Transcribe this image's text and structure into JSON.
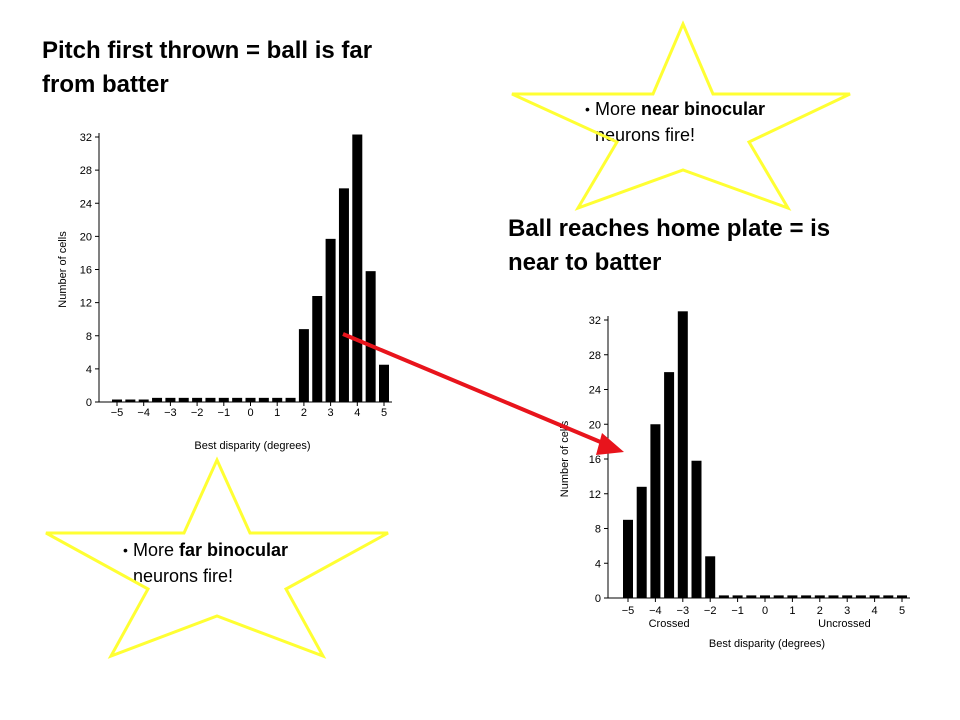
{
  "headings": {
    "top": [
      "Pitch first thrown = ball is far",
      "from batter"
    ],
    "bottom": [
      "Ball reaches home plate = is",
      "near to batter"
    ]
  },
  "callouts": {
    "top": {
      "prefix": "More ",
      "bold": "near binocular",
      "line2": "neurons fire!"
    },
    "bottom": {
      "prefix": "More ",
      "bold": "far binocular",
      "line2": "neurons fire!"
    }
  },
  "colors": {
    "star_outline": "#ffff33",
    "arrow": "#e8141c",
    "bars": "#000000"
  },
  "chart_data": [
    {
      "type": "bar",
      "ylabel": "Number of cells",
      "xlabel": "Best disparity (degrees)",
      "x_ticks": [
        "−5",
        "−4",
        "−3",
        "−2",
        "−1",
        "0",
        "1",
        "2",
        "3",
        "4",
        "5"
      ],
      "y_ticks": [
        "0",
        "4",
        "8",
        "12",
        "16",
        "20",
        "24",
        "28",
        "32"
      ],
      "xlim": [
        -5,
        5
      ],
      "ylim": [
        0,
        32
      ],
      "bins": [
        {
          "x": -5.0,
          "value": 0.3
        },
        {
          "x": -4.5,
          "value": 0.3
        },
        {
          "x": -4.0,
          "value": 0.3
        },
        {
          "x": -3.5,
          "value": 0.5
        },
        {
          "x": -3.0,
          "value": 0.5
        },
        {
          "x": -2.5,
          "value": 0.5
        },
        {
          "x": -2.0,
          "value": 0.5
        },
        {
          "x": -1.5,
          "value": 0.5
        },
        {
          "x": -1.0,
          "value": 0.5
        },
        {
          "x": -0.5,
          "value": 0.5
        },
        {
          "x": 0.0,
          "value": 0.5
        },
        {
          "x": 0.5,
          "value": 0.5
        },
        {
          "x": 1.0,
          "value": 0.5
        },
        {
          "x": 1.5,
          "value": 0.5
        },
        {
          "x": 2.0,
          "value": 8.8
        },
        {
          "x": 2.5,
          "value": 12.8
        },
        {
          "x": 3.0,
          "value": 19.7
        },
        {
          "x": 3.5,
          "value": 25.8
        },
        {
          "x": 4.0,
          "value": 32.3
        },
        {
          "x": 4.5,
          "value": 15.8
        },
        {
          "x": 5.0,
          "value": 4.5
        }
      ]
    },
    {
      "type": "bar",
      "ylabel": "Number of cells",
      "xlabel": "Best disparity (degrees)",
      "x_ticks": [
        "−5",
        "−4",
        "−3",
        "−2",
        "−1",
        "0",
        "1",
        "2",
        "3",
        "4",
        "5"
      ],
      "y_ticks": [
        "0",
        "4",
        "8",
        "12",
        "16",
        "20",
        "24",
        "28",
        "32"
      ],
      "sublabels": {
        "left": "Crossed",
        "right": "Uncrossed"
      },
      "xlim": [
        -5,
        5
      ],
      "ylim": [
        0,
        32
      ],
      "bins": [
        {
          "x": -5.0,
          "value": 9.0
        },
        {
          "x": -4.5,
          "value": 12.8
        },
        {
          "x": -4.0,
          "value": 20.0
        },
        {
          "x": -3.5,
          "value": 26.0
        },
        {
          "x": -3.0,
          "value": 33.0
        },
        {
          "x": -2.5,
          "value": 15.8
        },
        {
          "x": -2.0,
          "value": 4.8
        },
        {
          "x": -1.5,
          "value": 0.3
        },
        {
          "x": -1.0,
          "value": 0.3
        },
        {
          "x": -0.5,
          "value": 0.3
        },
        {
          "x": 0.0,
          "value": 0.3
        },
        {
          "x": 0.5,
          "value": 0.3
        },
        {
          "x": 1.0,
          "value": 0.3
        },
        {
          "x": 1.5,
          "value": 0.3
        },
        {
          "x": 2.0,
          "value": 0.3
        },
        {
          "x": 2.5,
          "value": 0.3
        },
        {
          "x": 3.0,
          "value": 0.3
        },
        {
          "x": 3.5,
          "value": 0.3
        },
        {
          "x": 4.0,
          "value": 0.3
        },
        {
          "x": 4.5,
          "value": 0.3
        },
        {
          "x": 5.0,
          "value": 0.3
        }
      ]
    }
  ]
}
